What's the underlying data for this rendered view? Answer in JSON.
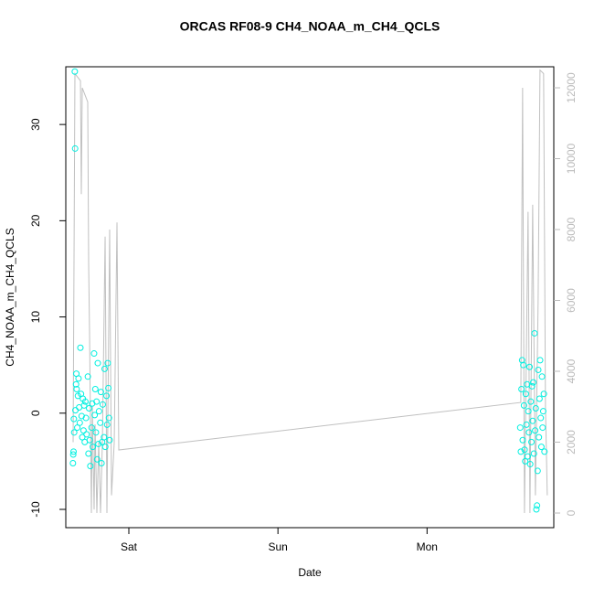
{
  "chart_data": {
    "type": "scatter",
    "title": "ORCAS RF08-9 CH4_NOAA_m_CH4_QCLS",
    "xlabel": "Date",
    "ylabel": "CH4_NOAA_m_CH4_QCLS",
    "xlim": [
      -10.15,
      68.4
    ],
    "xticks": [
      {
        "value": 0,
        "label": "Sat"
      },
      {
        "value": 24,
        "label": "Sun"
      },
      {
        "value": 48,
        "label": "Mon"
      }
    ],
    "ylim": [
      -11.9,
      36.0
    ],
    "yticks": [
      -10,
      0,
      10,
      20,
      30
    ],
    "y2lim": [
      -413,
      12594
    ],
    "y2ticks": [
      0,
      2000,
      4000,
      6000,
      8000,
      10000,
      12000
    ],
    "series": [
      {
        "kind": "points",
        "color": "#00f0e0",
        "x": [
          -9.0,
          -8.95,
          -8.9,
          -8.85,
          -8.8,
          -8.7,
          -8.65,
          -8.6,
          -8.5,
          -8.45,
          -8.4,
          -8.3,
          -8.2,
          -8.1,
          -8.0,
          -7.9,
          -7.8,
          -7.7,
          -7.6,
          -7.5,
          -7.4,
          -7.3,
          -7.2,
          -7.1,
          -7.0,
          -6.9,
          -6.8,
          -6.6,
          -6.5,
          -6.4,
          -6.3,
          -6.2,
          -6.0,
          -5.9,
          -5.8,
          -5.6,
          -5.5,
          -5.4,
          -5.3,
          -5.2,
          -5.1,
          -5.0,
          -4.9,
          -4.8,
          -4.6,
          -4.5,
          -4.4,
          -4.3,
          -4.2,
          -4.0,
          -3.9,
          -3.8,
          -3.6,
          -3.5,
          -3.4,
          -3.3,
          -3.2,
          -3.1,
          63.0,
          63.1,
          63.2,
          63.3,
          63.4,
          63.5,
          63.6,
          63.7,
          63.8,
          63.9,
          64.0,
          64.1,
          64.2,
          64.3,
          64.4,
          64.5,
          64.6,
          64.7,
          64.8,
          64.9,
          65.0,
          65.1,
          65.2,
          65.3,
          65.4,
          65.5,
          65.6,
          65.7,
          65.8,
          65.9,
          66.0,
          66.1,
          66.2,
          66.3,
          66.4,
          66.5,
          66.6,
          66.7,
          66.8,
          66.9
        ],
        "values": [
          -5.2,
          -4.3,
          -4.0,
          -0.6,
          -2.0,
          35.5,
          27.5,
          0.3,
          3.0,
          4.1,
          2.5,
          -1.5,
          1.8,
          3.6,
          0.6,
          -1.0,
          6.8,
          2.0,
          -0.3,
          -2.5,
          1.5,
          -1.8,
          0.8,
          -3.0,
          1.2,
          -0.5,
          -2.2,
          3.8,
          -4.2,
          0.5,
          -2.8,
          -5.5,
          -1.5,
          1.0,
          -3.5,
          6.2,
          -0.2,
          2.5,
          -2.0,
          1.2,
          -4.8,
          5.2,
          -3.2,
          0.2,
          -1.0,
          2.2,
          -5.2,
          -3.0,
          0.9,
          -2.5,
          4.6,
          -3.5,
          1.8,
          -1.2,
          5.2,
          2.6,
          -0.5,
          -2.8,
          -1.5,
          -4.0,
          2.5,
          5.5,
          -2.8,
          5.0,
          0.8,
          -3.8,
          -5.0,
          2.0,
          -1.2,
          3.0,
          -4.5,
          0.2,
          -2.0,
          4.8,
          -5.3,
          1.2,
          -3.0,
          2.8,
          -0.8,
          3.2,
          -4.2,
          8.3,
          -1.8,
          0.5,
          -10.0,
          -9.6,
          -6.0,
          4.5,
          -2.5,
          1.5,
          5.5,
          -0.5,
          -3.5,
          3.8,
          -1.5,
          0.2,
          2.0,
          -4.0
        ]
      },
      {
        "kind": "line",
        "axis": "y2",
        "color": "#c0c0c0",
        "x": [
          -8.97,
          -8.68,
          -7.79,
          -7.65,
          -7.5,
          -6.62,
          -6.47,
          -6.32,
          -6.03,
          -5.88,
          -5.59,
          -5.44,
          -5.15,
          -4.85,
          -4.56,
          -4.26,
          -3.82,
          -3.53,
          -3.09,
          -2.79,
          -2.35,
          -1.91,
          -1.62,
          63.09,
          63.38,
          63.68,
          64.26,
          64.56,
          65.0,
          65.44,
          65.88,
          66.18,
          66.76,
          67.06,
          67.35
        ],
        "values": [
          2000,
          12400,
          12200,
          9000,
          12000,
          11600,
          7000,
          5000,
          0,
          3000,
          100,
          2500,
          0,
          2000,
          0,
          2000,
          7800,
          0,
          8000,
          500,
          2000,
          8200,
          1780,
          3120,
          12000,
          0,
          8500,
          0,
          8700,
          500,
          6000,
          12500,
          12400,
          3000,
          500
        ]
      }
    ]
  }
}
